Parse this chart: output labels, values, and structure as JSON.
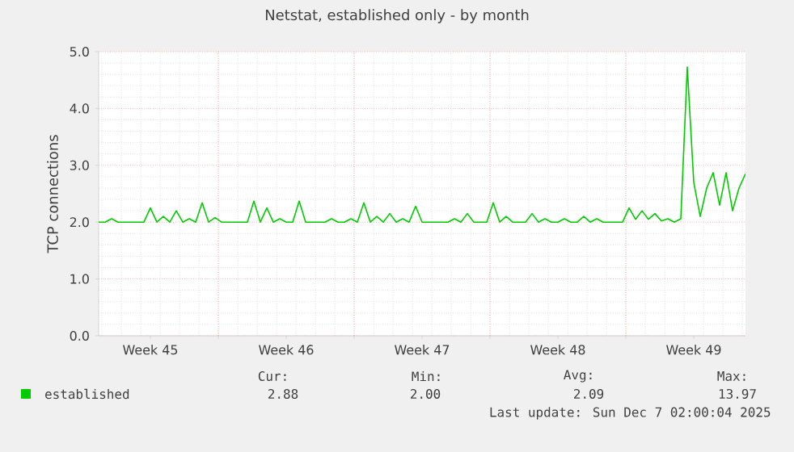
{
  "chart_data": {
    "type": "line",
    "title": "Netstat, established only - by month",
    "ylabel": "TCP connections",
    "categories": [
      null,
      null,
      null,
      null,
      null,
      null,
      null,
      null,
      "Week 45",
      null,
      null,
      null,
      null,
      null,
      null,
      null,
      null,
      null,
      null,
      null,
      null,
      null,
      null,
      null,
      null,
      null,
      null,
      null,
      null,
      "Week 46",
      null,
      null,
      null,
      null,
      null,
      null,
      null,
      null,
      null,
      null,
      null,
      null,
      null,
      null,
      null,
      null,
      null,
      null,
      null,
      null,
      "Week 47",
      null,
      null,
      null,
      null,
      null,
      null,
      null,
      null,
      null,
      null,
      null,
      null,
      null,
      null,
      null,
      null,
      null,
      null,
      null,
      null,
      "Week 48",
      null,
      null,
      null,
      null,
      null,
      null,
      null,
      null,
      null,
      null,
      null,
      null,
      null,
      null,
      null,
      null,
      null,
      null,
      null,
      null,
      "Week 49",
      null,
      null,
      null,
      null,
      null,
      null,
      null,
      null
    ],
    "series": [
      {
        "name": "established",
        "color": "#00cc00",
        "values": [
          2.0,
          2.0,
          2.06,
          2.0,
          2.0,
          2.0,
          2.0,
          2.0,
          2.25,
          2.0,
          2.1,
          2.0,
          2.2,
          2.0,
          2.06,
          2.0,
          2.34,
          2.0,
          2.08,
          2.0,
          2.0,
          2.0,
          2.0,
          2.0,
          2.37,
          2.0,
          2.25,
          2.0,
          2.06,
          2.0,
          2.0,
          2.37,
          2.0,
          2.0,
          2.0,
          2.0,
          2.06,
          2.0,
          2.0,
          2.06,
          2.0,
          2.34,
          2.0,
          2.1,
          2.0,
          2.15,
          2.0,
          2.06,
          2.0,
          2.28,
          2.0,
          2.0,
          2.0,
          2.0,
          2.0,
          2.06,
          2.0,
          2.15,
          2.0,
          2.0,
          2.0,
          2.34,
          2.0,
          2.1,
          2.0,
          2.0,
          2.0,
          2.15,
          2.0,
          2.06,
          2.0,
          2.0,
          2.06,
          2.0,
          2.0,
          2.1,
          2.0,
          2.06,
          2.0,
          2.0,
          2.0,
          2.0,
          2.25,
          2.05,
          2.2,
          2.05,
          2.15,
          2.02,
          2.06,
          2.0,
          2.06,
          4.73,
          2.7,
          2.1,
          2.6,
          2.87,
          2.3,
          2.87,
          2.2,
          2.6,
          2.85
        ]
      }
    ],
    "ylim": [
      0,
      5
    ],
    "yticks": [
      {
        "value": 0,
        "label": "0.0"
      },
      {
        "value": 1,
        "label": "1.0"
      },
      {
        "value": 2,
        "label": "2.0"
      },
      {
        "value": 3,
        "label": "3.0"
      },
      {
        "value": 4,
        "label": "4.0"
      },
      {
        "value": 5,
        "label": "5.0"
      }
    ],
    "grid": true,
    "legend": "bottom",
    "annotations": [
      "Cur:",
      "2.88",
      "Min:",
      "2.00",
      "Avg:",
      "2.09",
      "Max:",
      "13.97",
      "Last update: Sun Dec 7 02:00:04 2025"
    ]
  }
}
